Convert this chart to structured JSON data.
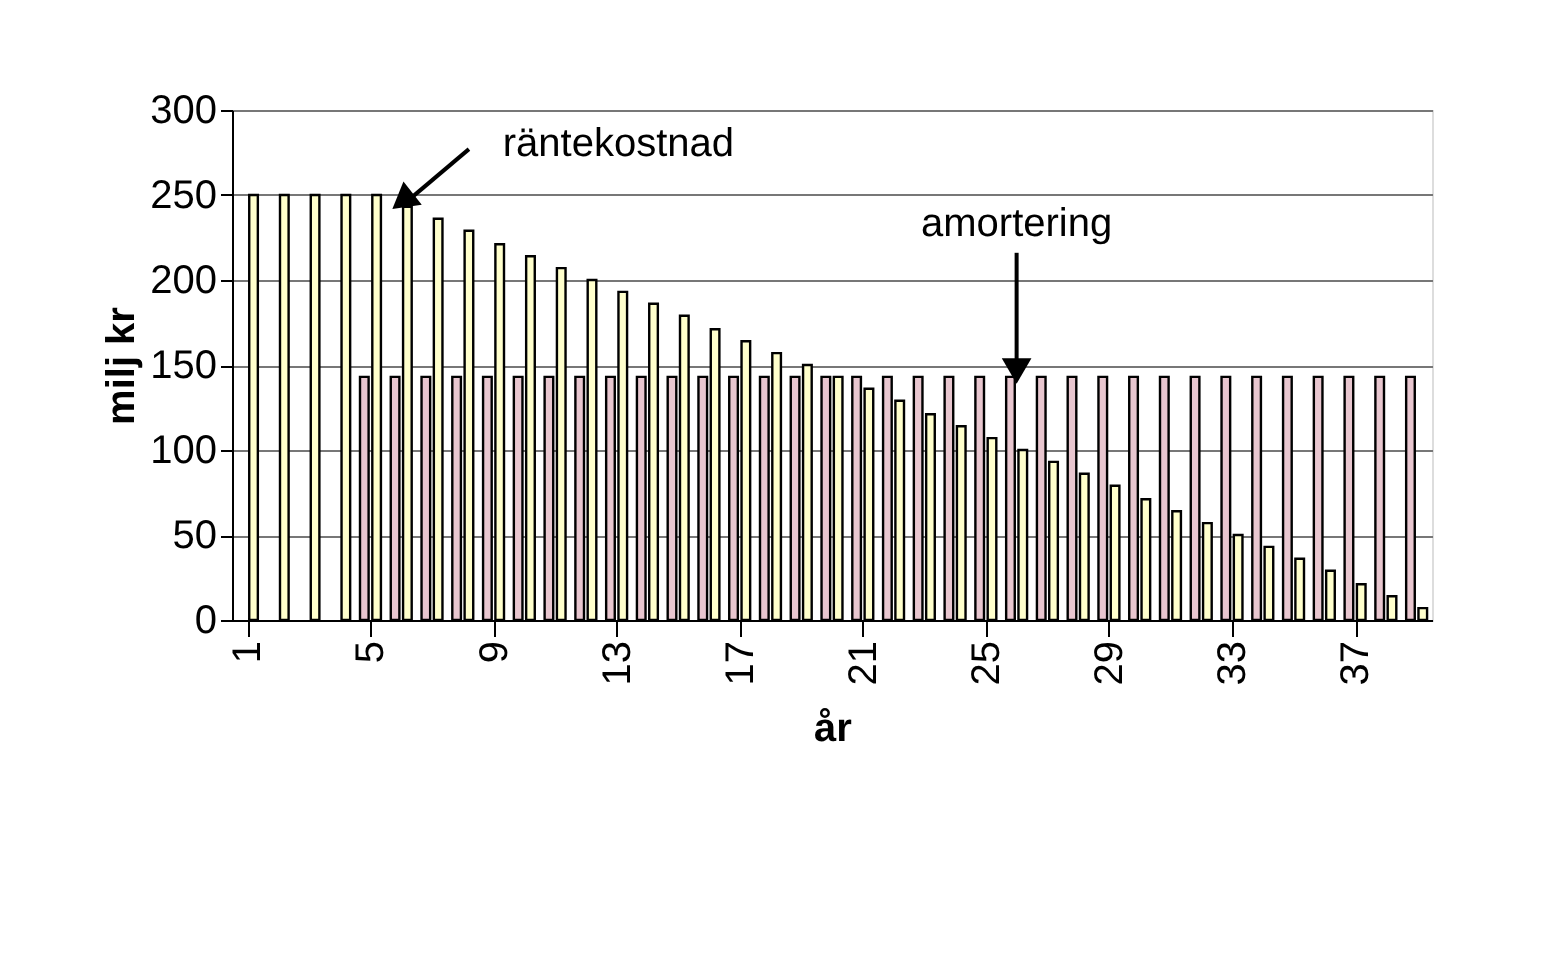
{
  "chart_data": {
    "type": "bar",
    "x": [
      1,
      2,
      3,
      4,
      5,
      6,
      7,
      8,
      9,
      10,
      11,
      12,
      13,
      14,
      15,
      16,
      17,
      18,
      19,
      20,
      21,
      22,
      23,
      24,
      25,
      26,
      27,
      28,
      29,
      30,
      31,
      32,
      33,
      34,
      35,
      36,
      37,
      38,
      39
    ],
    "series": [
      {
        "type": "bar",
        "color": "#e8c6cf",
        "values": [
          null,
          null,
          null,
          null,
          143,
          143,
          143,
          143,
          143,
          143,
          143,
          143,
          143,
          143,
          143,
          143,
          143,
          143,
          143,
          143,
          143,
          143,
          143,
          143,
          143,
          143,
          143,
          143,
          143,
          143,
          143,
          143,
          143,
          143,
          143,
          143,
          143,
          143,
          143
        ]
      },
      {
        "type": "bar",
        "color": "#ffffcc",
        "values": [
          250,
          250,
          250,
          250,
          250,
          243,
          236,
          229,
          221,
          214,
          207,
          200,
          193,
          186,
          179,
          171,
          164,
          157,
          150,
          143,
          136,
          129,
          121,
          114,
          107,
          100,
          93,
          86,
          79,
          71,
          64,
          57,
          50,
          43,
          36,
          29,
          21,
          14,
          7
        ]
      }
    ],
    "xlabel": "år",
    "ylabel": "milj kr",
    "xlim": [
      0.5,
      39.5
    ],
    "xticks": [
      1,
      5,
      9,
      13,
      17,
      21,
      25,
      29,
      33,
      37
    ],
    "ylim": [
      0,
      300
    ],
    "yticks": [
      0,
      50,
      100,
      150,
      200,
      250,
      300
    ],
    "grid": "y",
    "legend": false,
    "annotations": [
      {
        "text": "räntekostnad",
        "x": 6,
        "y": 243
      },
      {
        "text": "amortering",
        "x": 26,
        "y": 143
      }
    ]
  }
}
